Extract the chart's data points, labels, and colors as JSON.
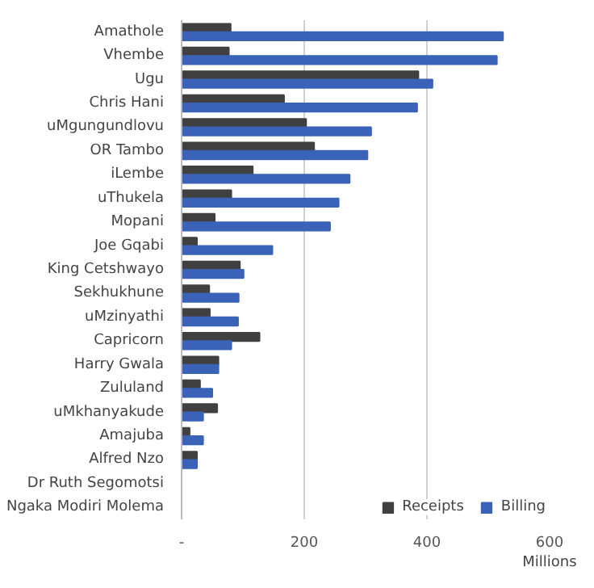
{
  "chart_data": {
    "type": "bar",
    "orientation": "horizontal",
    "categories": [
      "Amathole",
      "Vhembe",
      "Ugu",
      "Chris Hani",
      "uMgungundlovu",
      "OR Tambo",
      "iLembe",
      "uThukela",
      "Mopani",
      "Joe Gqabi",
      "King Cetshwayo",
      "Sekhukhune",
      "uMzinyathi",
      "Capricorn",
      "Harry Gwala",
      "Zululand",
      "uMkhanyakude",
      "Amajuba",
      "Alfred Nzo",
      "Dr Ruth Segomotsi",
      "Ngaka Modiri Molema"
    ],
    "series": [
      {
        "name": "Receipts",
        "color": "#404040",
        "values": [
          80,
          77,
          386,
          167,
          203,
          216,
          116,
          81,
          54,
          25,
          95,
          45,
          46,
          127,
          60,
          30,
          58,
          13,
          25,
          0,
          0
        ]
      },
      {
        "name": "Billing",
        "color": "#3a63b8",
        "values": [
          524,
          514,
          409,
          384,
          309,
          303,
          274,
          256,
          242,
          148,
          101,
          93,
          92,
          81,
          60,
          50,
          35,
          35,
          25,
          0,
          0
        ]
      }
    ],
    "xlabel": "Millions",
    "xlim": [
      0,
      600
    ],
    "xticks": [
      {
        "value": 0,
        "label": "-"
      },
      200,
      400,
      600
    ],
    "grid": "x",
    "legend": "bottom"
  }
}
